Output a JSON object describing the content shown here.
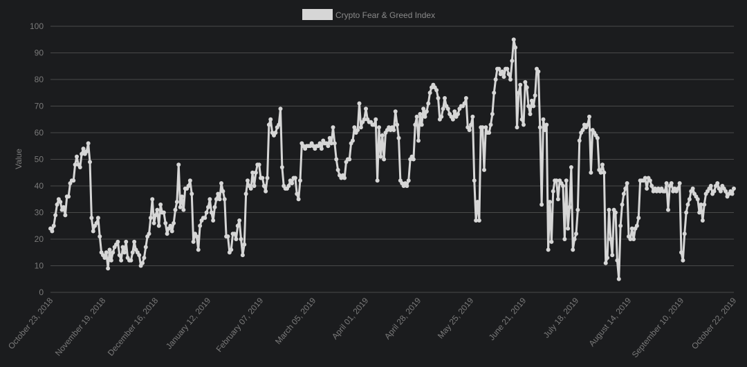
{
  "colors": {
    "background": "#1b1c1e",
    "line": "#d6d6d6",
    "axis_text": "#7a7a7a"
  },
  "chart_data": {
    "type": "line",
    "title": "",
    "xlabel": "",
    "ylabel": "Value",
    "ylim": [
      0,
      100
    ],
    "y_ticks": [
      0,
      10,
      20,
      30,
      40,
      50,
      60,
      70,
      80,
      90,
      100
    ],
    "x_tick_labels": [
      "October 23, 2018",
      "November 19, 2018",
      "December 16, 2018",
      "January 12, 2019",
      "February 07, 2019",
      "March 05, 2019",
      "April 01, 2019",
      "April 28, 2019",
      "May 25, 2019",
      "June 21, 2019",
      "July 18, 2019",
      "August 14, 2019",
      "September 10, 2019",
      "October 22, 2019"
    ],
    "grid": "horizontal",
    "legend_position": "top-center",
    "series": [
      {
        "name": "Crypto Fear & Greed Index",
        "values": [
          24,
          23,
          25,
          29,
          33,
          35,
          34,
          31,
          32,
          29,
          36,
          36,
          41,
          42,
          42,
          48,
          51,
          48,
          47,
          52,
          54,
          52,
          53,
          56,
          49,
          28,
          23,
          25,
          26,
          28,
          21,
          15,
          14,
          13,
          15,
          9,
          16,
          12,
          15,
          17,
          18,
          19,
          14,
          12,
          17,
          15,
          19,
          13,
          12,
          12,
          15,
          19,
          16,
          15,
          14,
          10,
          11,
          13,
          17,
          21,
          22,
          28,
          35,
          26,
          29,
          31,
          25,
          33,
          30,
          30,
          26,
          22,
          24,
          25,
          23,
          26,
          31,
          34,
          48,
          32,
          36,
          31,
          39,
          39,
          40,
          42,
          37,
          19,
          22,
          21,
          16,
          25,
          27,
          28,
          28,
          30,
          32,
          35,
          30,
          27,
          32,
          35,
          37,
          35,
          41,
          38,
          35,
          21,
          21,
          15,
          16,
          22,
          22,
          20,
          25,
          27,
          20,
          14,
          18,
          37,
          42,
          40,
          39,
          45,
          40,
          45,
          48,
          48,
          43,
          43,
          40,
          38,
          43,
          63,
          65,
          60,
          59,
          60,
          62,
          63,
          69,
          47,
          40,
          39,
          39,
          40,
          42,
          41,
          43,
          43,
          37,
          35,
          42,
          56,
          55,
          54,
          55,
          55,
          55,
          56,
          55,
          54,
          55,
          55,
          56,
          54,
          57,
          56,
          56,
          55,
          58,
          56,
          62,
          56,
          50,
          46,
          44,
          43,
          44,
          43,
          49,
          50,
          50,
          56,
          57,
          62,
          60,
          61,
          71,
          62,
          64,
          65,
          69,
          65,
          64,
          64,
          63,
          63,
          65,
          42,
          62,
          51,
          59,
          50,
          60,
          61,
          62,
          61,
          62,
          61,
          68,
          63,
          58,
          42,
          41,
          40,
          41,
          40,
          42,
          50,
          51,
          50,
          63,
          66,
          57,
          67,
          63,
          69,
          66,
          68,
          71,
          75,
          77,
          78,
          77,
          76,
          73,
          65,
          66,
          69,
          73,
          70,
          69,
          67,
          66,
          65,
          68,
          66,
          67,
          69,
          70,
          70,
          71,
          73,
          62,
          61,
          63,
          66,
          42,
          27,
          34,
          27,
          62,
          62,
          46,
          62,
          60,
          60,
          63,
          67,
          75,
          80,
          84,
          84,
          82,
          83,
          81,
          84,
          84,
          82,
          80,
          87,
          95,
          92,
          62,
          75,
          78,
          65,
          63,
          79,
          77,
          70,
          67,
          72,
          70,
          74,
          84,
          83,
          62,
          33,
          65,
          61,
          63,
          16,
          34,
          19,
          38,
          42,
          42,
          35,
          42,
          41,
          40,
          20,
          42,
          24,
          32,
          47,
          16,
          20,
          22,
          31,
          57,
          60,
          61,
          63,
          62,
          63,
          66,
          45,
          61,
          60,
          59,
          58,
          46,
          45,
          48,
          45,
          11,
          13,
          31,
          20,
          14,
          31,
          30,
          12,
          5,
          25,
          33,
          37,
          39,
          41,
          21,
          20,
          24,
          20,
          24,
          25,
          28,
          42,
          42,
          42,
          43,
          39,
          43,
          42,
          40,
          38,
          39,
          38,
          39,
          38,
          39,
          38,
          38,
          41,
          31,
          40,
          41,
          38,
          39,
          38,
          39,
          41,
          15,
          12,
          22,
          30,
          33,
          35,
          38,
          39,
          37,
          36,
          35,
          30,
          33,
          27,
          33,
          37,
          38,
          39,
          40,
          37,
          38,
          40,
          41,
          39,
          38,
          40,
          39,
          38,
          36,
          37,
          38,
          37,
          39
        ]
      }
    ]
  }
}
